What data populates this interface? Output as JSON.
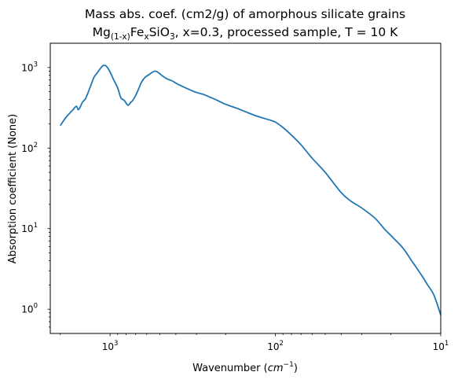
{
  "chart_data": {
    "type": "line",
    "title_line1": "Mass abs. coef. (cm2/g) of amorphous silicate grains",
    "title_line2": {
      "mg": "Mg",
      "mg_sub": "(1-x)",
      "fe": "Fe",
      "fe_sub": "x",
      "sio": "SiO",
      "sio_sub": "3",
      "rest": ", x=0.3, processed sample, T =  10 K"
    },
    "xlabel": {
      "text": "Wavenumber (",
      "unit_base": "cm",
      "unit_exp": "−1",
      "close": ")"
    },
    "ylabel": "Absorption coefficient (None)",
    "x_scale": "log",
    "y_scale": "log",
    "x_inverted": true,
    "xlim": [
      2300,
      10
    ],
    "ylim": [
      0.5,
      2000
    ],
    "x_ticks": [
      {
        "value": 1000,
        "base": "10",
        "exp": "3"
      },
      {
        "value": 100,
        "base": "10",
        "exp": "2"
      },
      {
        "value": 10,
        "base": "10",
        "exp": "1"
      }
    ],
    "y_ticks": [
      {
        "value": 1,
        "base": "10",
        "exp": "0"
      },
      {
        "value": 10,
        "base": "10",
        "exp": "1"
      },
      {
        "value": 100,
        "base": "10",
        "exp": "2"
      },
      {
        "value": 1000,
        "base": "10",
        "exp": "3"
      }
    ],
    "grid": false,
    "series_color": "#1f77b4",
    "series": [
      {
        "x": [
          2000,
          1850,
          1700,
          1600,
          1560,
          1520,
          1470,
          1400,
          1300,
          1250,
          1200,
          1150,
          1100,
          1050,
          1000,
          950,
          900,
          860,
          820,
          780,
          750,
          730,
          700,
          670,
          650,
          620,
          580,
          530,
          480,
          450,
          420,
          400,
          370,
          330,
          300,
          270,
          250,
          230,
          200,
          170,
          150,
          130,
          110,
          100,
          90,
          80,
          70,
          60,
          50,
          40,
          35,
          30,
          25,
          22,
          20,
          17,
          15,
          13,
          12,
          11,
          10
        ],
        "y": [
          190,
          240,
          290,
          330,
          300,
          320,
          370,
          420,
          620,
          760,
          850,
          960,
          1060,
          1030,
          880,
          700,
          560,
          420,
          390,
          340,
          370,
          390,
          450,
          550,
          640,
          740,
          820,
          900,
          780,
          720,
          680,
          640,
          590,
          530,
          490,
          460,
          430,
          400,
          350,
          310,
          280,
          250,
          225,
          210,
          180,
          145,
          110,
          75,
          50,
          28,
          22,
          18,
          13.5,
          10,
          8.2,
          5.8,
          4.0,
          2.6,
          2.0,
          1.5,
          0.85
        ]
      }
    ]
  }
}
